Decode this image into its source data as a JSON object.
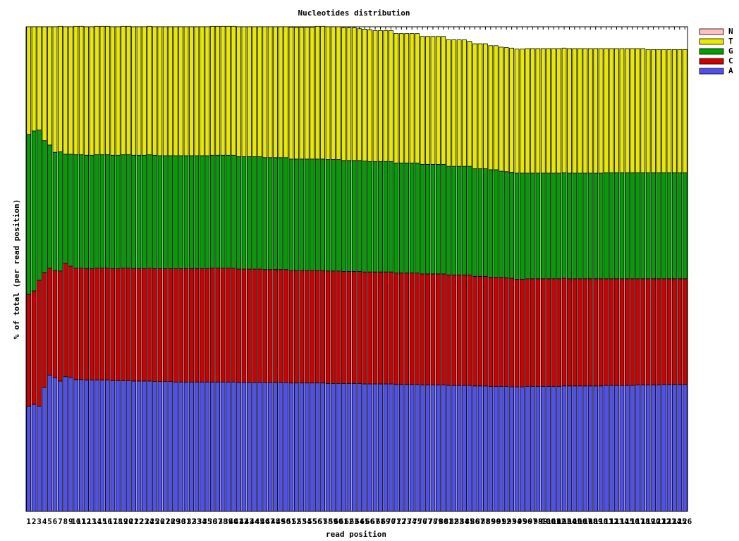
{
  "chart_data": {
    "type": "stacked_bar",
    "title": "Nucleotides distribution",
    "x_label": "read position",
    "y_label": "% of total (per read position)",
    "categories": [
      1,
      2,
      3,
      4,
      5,
      6,
      7,
      8,
      9,
      10,
      11,
      12,
      13,
      14,
      15,
      16,
      17,
      18,
      19,
      20,
      21,
      22,
      23,
      24,
      25,
      26,
      27,
      28,
      29,
      30,
      31,
      32,
      33,
      34,
      35,
      36,
      37,
      38,
      39,
      40,
      41,
      42,
      43,
      44,
      45,
      46,
      47,
      48,
      49,
      50,
      51,
      52,
      53,
      54,
      55,
      56,
      57,
      58,
      59,
      60,
      61,
      62,
      63,
      64,
      65,
      66,
      67,
      68,
      69,
      70,
      71,
      72,
      73,
      74,
      75,
      76,
      77,
      78,
      79,
      80,
      81,
      82,
      83,
      84,
      85,
      86,
      87,
      88,
      89,
      90,
      91,
      92,
      93,
      94,
      95,
      96,
      97,
      98,
      99,
      100,
      101,
      102,
      103,
      104,
      105,
      106,
      107,
      108,
      109,
      110,
      111,
      112,
      113,
      114,
      115,
      116,
      117,
      118,
      119,
      120,
      121,
      122,
      123,
      124,
      125,
      126
    ],
    "ylim": [
      0,
      100
    ],
    "legend": "top-right",
    "series": [
      {
        "name": "A",
        "color": "#5050f0",
        "values": [
          21.7,
          22.1,
          21.7,
          25.6,
          28.1,
          27.6,
          26.9,
          27.8,
          27.6,
          27.2,
          27.2,
          27.1,
          27.1,
          27.1,
          27.1,
          27.1,
          27.0,
          27.0,
          27.0,
          27.0,
          26.9,
          26.9,
          26.9,
          26.9,
          26.8,
          26.8,
          26.8,
          26.8,
          26.7,
          26.7,
          26.7,
          26.7,
          26.7,
          26.7,
          26.7,
          26.7,
          26.7,
          26.7,
          26.7,
          26.7,
          26.6,
          26.6,
          26.6,
          26.6,
          26.6,
          26.6,
          26.6,
          26.6,
          26.6,
          26.6,
          26.5,
          26.5,
          26.5,
          26.5,
          26.5,
          26.5,
          26.5,
          26.4,
          26.4,
          26.4,
          26.4,
          26.4,
          26.4,
          26.4,
          26.3,
          26.3,
          26.3,
          26.3,
          26.3,
          26.3,
          26.2,
          26.2,
          26.2,
          26.2,
          26.2,
          26.1,
          26.1,
          26.1,
          26.1,
          26.1,
          26.0,
          26.0,
          26.0,
          26.0,
          26.0,
          25.9,
          25.9,
          25.9,
          25.8,
          25.8,
          25.8,
          25.8,
          25.7,
          25.7,
          25.7,
          25.8,
          25.8,
          25.8,
          25.8,
          25.8,
          25.8,
          25.8,
          25.9,
          25.9,
          25.9,
          25.9,
          25.9,
          25.9,
          25.9,
          25.9,
          26.0,
          26.0,
          26.0,
          26.0,
          26.0,
          26.0,
          26.1,
          26.1,
          26.1,
          26.1,
          26.1,
          26.2,
          26.2,
          26.2,
          26.2,
          26.2
        ]
      },
      {
        "name": "C",
        "color": "#d00000",
        "values": [
          23.1,
          23.4,
          26.0,
          23.7,
          22.1,
          22.1,
          22.7,
          23.4,
          23.0,
          23.0,
          23.0,
          23.0,
          23.0,
          23.1,
          23.1,
          23.1,
          23.1,
          23.1,
          23.2,
          23.2,
          23.2,
          23.2,
          23.2,
          23.3,
          23.3,
          23.3,
          23.3,
          23.3,
          23.4,
          23.4,
          23.4,
          23.4,
          23.4,
          23.4,
          23.4,
          23.5,
          23.5,
          23.5,
          23.5,
          23.5,
          23.4,
          23.4,
          23.4,
          23.4,
          23.4,
          23.3,
          23.3,
          23.3,
          23.3,
          23.3,
          23.2,
          23.2,
          23.2,
          23.2,
          23.2,
          23.2,
          23.2,
          23.2,
          23.2,
          23.2,
          23.1,
          23.1,
          23.1,
          23.1,
          23.1,
          23.1,
          23.1,
          23.1,
          23.1,
          23.1,
          23.0,
          23.0,
          23.0,
          23.0,
          23.0,
          22.9,
          22.9,
          22.9,
          22.9,
          22.9,
          22.8,
          22.8,
          22.8,
          22.8,
          22.8,
          22.6,
          22.6,
          22.6,
          22.5,
          22.5,
          22.5,
          22.4,
          22.4,
          22.2,
          22.2,
          22.2,
          22.2,
          22.2,
          22.2,
          22.2,
          22.2,
          22.2,
          22.2,
          22.1,
          22.1,
          22.1,
          22.1,
          22.1,
          22.1,
          22.1,
          22.0,
          22.0,
          22.0,
          22.0,
          22.0,
          22.0,
          21.9,
          21.9,
          21.9,
          21.9,
          21.9,
          21.8,
          21.8,
          21.8,
          21.8,
          21.8
        ]
      },
      {
        "name": "G",
        "color": "#00a000",
        "values": [
          33.0,
          33.0,
          31.0,
          27.2,
          25.4,
          24.4,
          24.6,
          22.5,
          23.1,
          23.4,
          23.4,
          23.4,
          23.4,
          23.4,
          23.4,
          23.4,
          23.4,
          23.4,
          23.4,
          23.4,
          23.4,
          23.4,
          23.4,
          23.4,
          23.4,
          23.3,
          23.3,
          23.3,
          23.3,
          23.3,
          23.3,
          23.3,
          23.3,
          23.3,
          23.3,
          23.3,
          23.3,
          23.3,
          23.3,
          23.3,
          23.2,
          23.2,
          23.2,
          23.2,
          23.2,
          23.1,
          23.1,
          23.1,
          23.1,
          23.1,
          23.0,
          23.0,
          23.0,
          23.0,
          23.0,
          23.0,
          23.0,
          23.0,
          23.0,
          23.0,
          22.9,
          22.9,
          22.9,
          22.9,
          22.9,
          22.8,
          22.8,
          22.8,
          22.8,
          22.8,
          22.7,
          22.7,
          22.7,
          22.7,
          22.7,
          22.6,
          22.6,
          22.6,
          22.6,
          22.6,
          22.4,
          22.4,
          22.4,
          22.4,
          22.4,
          22.2,
          22.2,
          22.2,
          22.2,
          22.2,
          21.9,
          21.9,
          21.9,
          21.9,
          21.9,
          21.8,
          21.8,
          21.8,
          21.8,
          21.8,
          21.8,
          21.8,
          21.8,
          21.8,
          21.8,
          21.8,
          21.8,
          21.8,
          21.8,
          21.8,
          21.9,
          21.9,
          21.9,
          21.9,
          21.9,
          21.9,
          21.9,
          21.9,
          21.9,
          21.9,
          21.9,
          21.9,
          21.9,
          21.9,
          21.9,
          21.9
        ]
      },
      {
        "name": "T",
        "color": "#e8e800",
        "values": [
          22.2,
          21.5,
          21.3,
          23.5,
          24.4,
          25.9,
          25.9,
          26.3,
          26.3,
          26.5,
          26.5,
          26.5,
          26.5,
          26.5,
          26.5,
          26.5,
          26.5,
          26.5,
          26.5,
          26.5,
          26.5,
          26.5,
          26.5,
          26.5,
          26.5,
          26.6,
          26.6,
          26.6,
          26.6,
          26.6,
          26.6,
          26.6,
          26.6,
          26.6,
          26.6,
          26.6,
          26.6,
          26.6,
          26.6,
          26.6,
          26.8,
          26.8,
          26.8,
          26.8,
          26.8,
          27.0,
          27.0,
          27.0,
          27.0,
          27.0,
          27.2,
          27.2,
          27.2,
          27.2,
          27.2,
          27.4,
          27.4,
          27.4,
          27.4,
          27.4,
          27.4,
          27.4,
          27.4,
          27.2,
          27.2,
          27.2,
          27.0,
          27.0,
          27.0,
          27.0,
          26.7,
          26.7,
          26.7,
          26.7,
          26.7,
          26.4,
          26.4,
          26.4,
          26.4,
          26.4,
          26.1,
          26.1,
          26.1,
          26.1,
          25.8,
          25.8,
          25.8,
          25.8,
          25.6,
          25.6,
          25.6,
          25.6,
          25.6,
          25.6,
          25.6,
          25.7,
          25.7,
          25.7,
          25.7,
          25.7,
          25.7,
          25.7,
          25.7,
          25.7,
          25.7,
          25.7,
          25.7,
          25.7,
          25.7,
          25.7,
          25.6,
          25.6,
          25.6,
          25.6,
          25.6,
          25.6,
          25.6,
          25.6,
          25.4,
          25.4,
          25.4,
          25.4,
          25.4,
          25.4,
          25.4,
          25.4
        ]
      },
      {
        "name": "N",
        "color": "#ffc0c0",
        "values": [
          0,
          0,
          0,
          0,
          0,
          0,
          0,
          0,
          0,
          0,
          0,
          0,
          0,
          0,
          0,
          0,
          0,
          0,
          0,
          0,
          0,
          0,
          0,
          0,
          0,
          0,
          0,
          0,
          0,
          0,
          0,
          0,
          0,
          0,
          0,
          0,
          0,
          0,
          0,
          0,
          0,
          0,
          0,
          0,
          0,
          0,
          0,
          0,
          0,
          0,
          0,
          0,
          0,
          0,
          0,
          0,
          0,
          0,
          0,
          0,
          0,
          0,
          0,
          0,
          0,
          0,
          0,
          0,
          0,
          0,
          0,
          0,
          0,
          0,
          0,
          0,
          0,
          0,
          0,
          0,
          0,
          0,
          0,
          0,
          0,
          0,
          0,
          0,
          0,
          0,
          0,
          0,
          0,
          0,
          0,
          0,
          0,
          0,
          0,
          0,
          0,
          0,
          0,
          0,
          0,
          0,
          0,
          0,
          0,
          0,
          0,
          0,
          0,
          0,
          0,
          0,
          0,
          0,
          0,
          0,
          0,
          0,
          0,
          0,
          0,
          0
        ]
      }
    ]
  }
}
